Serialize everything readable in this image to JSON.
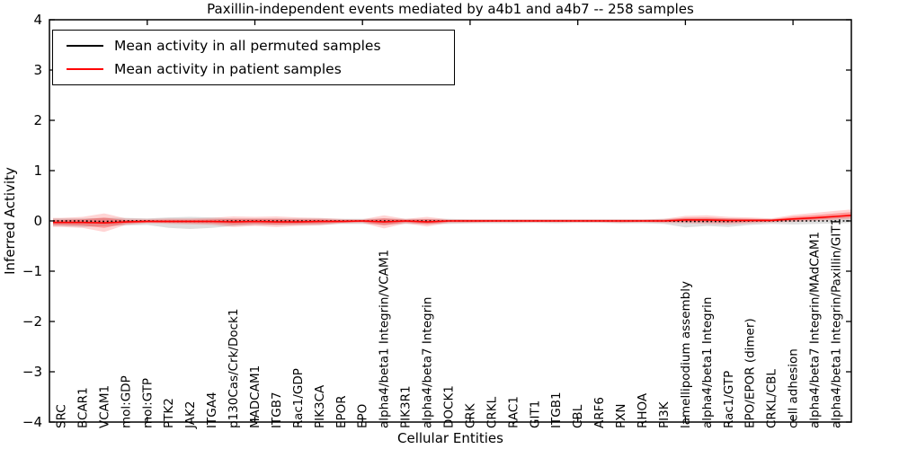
{
  "chart_data": {
    "type": "line",
    "title": "Paxillin-independent events mediated by a4b1 and a4b7 -- 258 samples",
    "xlabel": "Cellular Entities",
    "ylabel": "Inferred Activity",
    "ylim": [
      -4,
      4
    ],
    "yticks": [
      -4,
      -3,
      -2,
      -1,
      0,
      1,
      2,
      3,
      4
    ],
    "major_x_tick_indices": [
      4,
      9,
      14,
      19,
      24,
      29,
      34
    ],
    "legend_position": "upper left",
    "categories": [
      "SRC",
      "BCAR1",
      "VCAM1",
      "mol:GDP",
      "mol:GTP",
      "PTK2",
      "JAK2",
      "ITGA4",
      "p130Cas/Crk/Dock1",
      "MADCAM1",
      "ITGB7",
      "Rac1/GDP",
      "PIK3CA",
      "EPOR",
      "EPO",
      "alpha4/beta1 Integrin/VCAM1",
      "PIK3R1",
      "alpha4/beta7 Integrin",
      "DOCK1",
      "CRK",
      "CRKL",
      "RAC1",
      "GIT1",
      "ITGB1",
      "CBL",
      "ARF6",
      "PXN",
      "RHOA",
      "PI3K",
      "lamellipodium assembly",
      "alpha4/beta1 Integrin",
      "Rac1/GTP",
      "EPO/EPOR (dimer)",
      "CRKL/CBL",
      "cell adhesion",
      "alpha4/beta7 Integrin/MAdCAM1",
      "alpha4/beta1 Integrin/Paxillin/GIT1"
    ],
    "series": [
      {
        "name": "Mean activity in all permuted samples",
        "color": "#000000",
        "style": "dotted",
        "values": [
          0,
          0,
          -0.01,
          0,
          0,
          -0.01,
          -0.01,
          -0.01,
          0,
          0,
          0,
          0,
          0,
          0,
          0,
          0,
          0,
          0,
          0,
          0,
          0,
          0,
          0,
          0,
          0,
          0,
          0,
          0,
          0,
          -0.01,
          -0.01,
          -0.01,
          0,
          0,
          0,
          0,
          0
        ]
      },
      {
        "name": "Mean activity in patient samples",
        "color": "#ff0000",
        "style": "solid",
        "values": [
          -0.03,
          -0.03,
          -0.04,
          -0.02,
          -0.01,
          -0.01,
          -0.01,
          -0.01,
          -0.02,
          -0.01,
          -0.02,
          -0.02,
          -0.01,
          -0.01,
          0,
          -0.02,
          0,
          -0.02,
          0,
          0,
          0,
          0,
          0,
          0,
          0,
          0,
          0,
          0,
          0,
          0.02,
          0.02,
          0.01,
          0.01,
          0.01,
          0.04,
          0.06,
          0.09
        ]
      }
    ],
    "bands": {
      "permuted": {
        "color": "#999999",
        "upper": [
          0.05,
          0.05,
          0.06,
          0.06,
          0.05,
          0.07,
          0.08,
          0.07,
          0.05,
          0.05,
          0.05,
          0.05,
          0.05,
          0.04,
          0.04,
          0.05,
          0.04,
          0.04,
          0.04,
          0.03,
          0.03,
          0.03,
          0.03,
          0.03,
          0.03,
          0.03,
          0.03,
          0.03,
          0.04,
          0.05,
          0.05,
          0.05,
          0.04,
          0.04,
          0.05,
          0.06,
          0.07
        ],
        "lower": [
          -0.1,
          -0.12,
          -0.1,
          -0.09,
          -0.08,
          -0.14,
          -0.16,
          -0.14,
          -0.1,
          -0.08,
          -0.08,
          -0.08,
          -0.08,
          -0.06,
          -0.06,
          -0.07,
          -0.06,
          -0.06,
          -0.06,
          -0.05,
          -0.05,
          -0.05,
          -0.04,
          -0.05,
          -0.04,
          -0.04,
          -0.05,
          -0.05,
          -0.06,
          -0.13,
          -0.1,
          -0.12,
          -0.08,
          -0.06,
          -0.07,
          -0.06,
          -0.05
        ]
      },
      "patient": {
        "color": "#ff0000",
        "upper": [
          0.06,
          0.08,
          0.15,
          0.05,
          0.04,
          0.05,
          0.05,
          0.06,
          0.09,
          0.08,
          0.09,
          0.07,
          0.06,
          0.04,
          0.03,
          0.11,
          0.04,
          0.08,
          0.03,
          0.03,
          0.03,
          0.03,
          0.03,
          0.03,
          0.03,
          0.03,
          0.03,
          0.03,
          0.04,
          0.1,
          0.11,
          0.08,
          0.07,
          0.05,
          0.12,
          0.16,
          0.2
        ],
        "lower": [
          -0.12,
          -0.14,
          -0.22,
          -0.08,
          -0.05,
          -0.06,
          -0.07,
          -0.08,
          -0.12,
          -0.1,
          -0.12,
          -0.1,
          -0.09,
          -0.05,
          -0.04,
          -0.15,
          -0.05,
          -0.11,
          -0.04,
          -0.04,
          -0.03,
          -0.03,
          -0.03,
          -0.03,
          -0.03,
          -0.03,
          -0.04,
          -0.03,
          -0.04,
          -0.05,
          -0.06,
          -0.07,
          -0.05,
          -0.03,
          -0.02,
          0.0,
          0.02
        ]
      }
    }
  }
}
